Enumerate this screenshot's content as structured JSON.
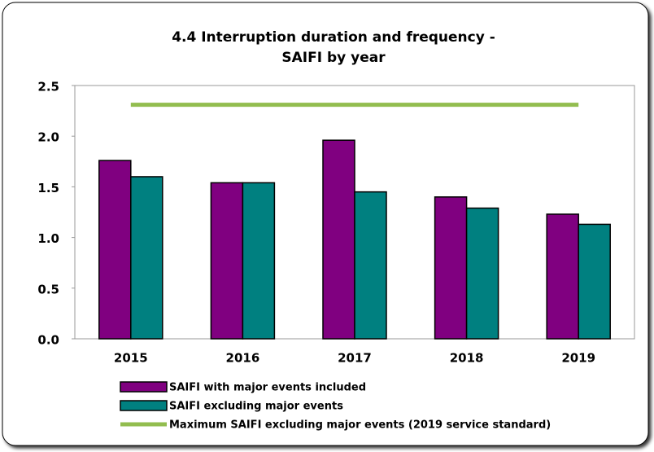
{
  "chart_data": {
    "type": "bar",
    "title": [
      "4.4 Interruption duration and frequency -",
      "SAIFI by year"
    ],
    "categories": [
      "2015",
      "2016",
      "2017",
      "2018",
      "2019"
    ],
    "series": [
      {
        "name": "SAIFI with major events included",
        "color": "#800080",
        "values": [
          1.76,
          1.54,
          1.96,
          1.4,
          1.23
        ]
      },
      {
        "name": "SAIFI excluding major events",
        "color": "#008080",
        "values": [
          1.6,
          1.54,
          1.45,
          1.29,
          1.13
        ]
      },
      {
        "name": "Maximum SAIFI excluding major events (2019 service standard)",
        "color": "#92bd4f",
        "type": "line",
        "values": [
          2.31,
          2.31,
          2.31,
          2.31,
          2.31
        ]
      }
    ],
    "ylim": [
      0,
      2.5
    ],
    "yticks": [
      {
        "value": 0,
        "label": "0.0"
      },
      0.5,
      {
        "value": 1,
        "label": "1.0"
      },
      1.5,
      {
        "value": 2,
        "label": "2.0"
      },
      2.5
    ],
    "grid": false,
    "legend": "bottom"
  }
}
